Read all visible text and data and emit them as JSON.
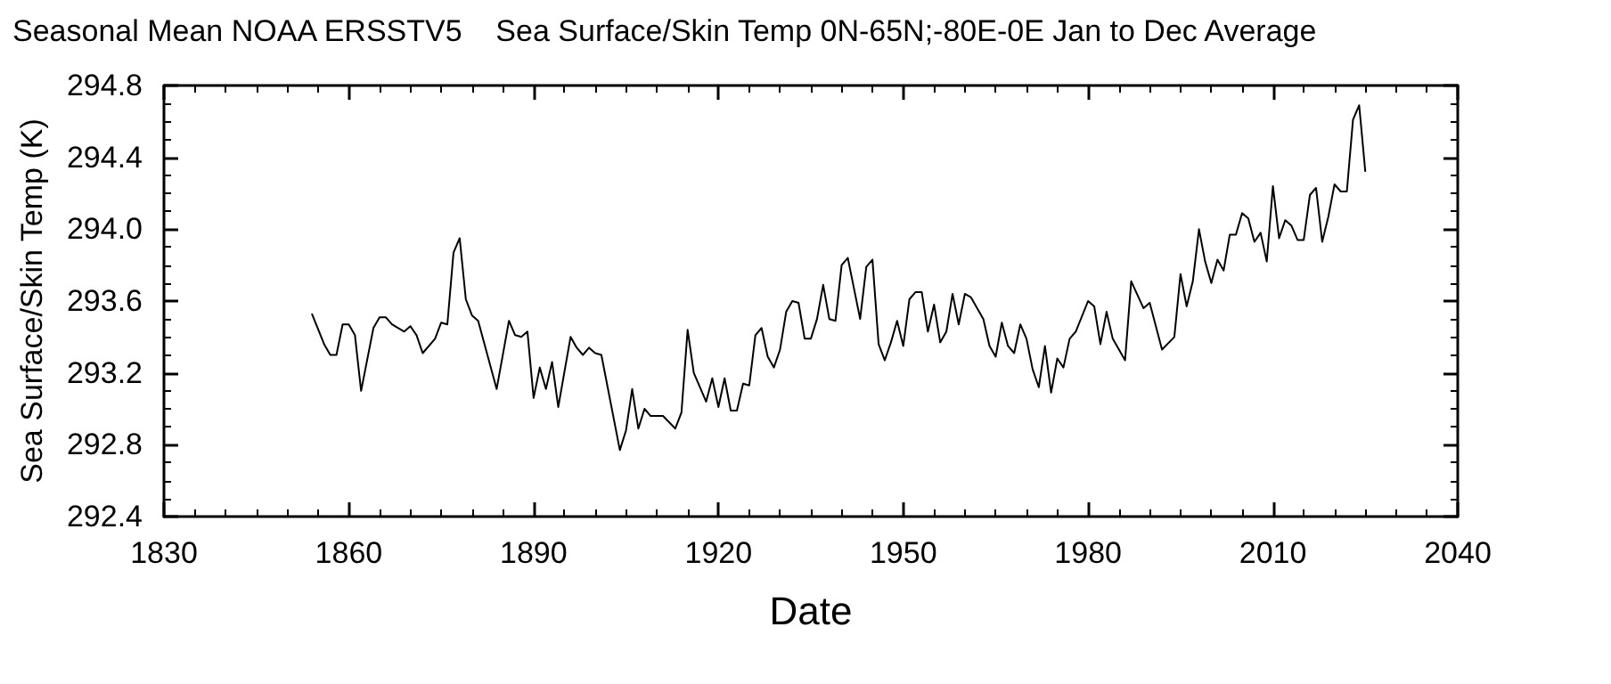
{
  "chart_data": {
    "type": "line",
    "title": "Seasonal Mean NOAA ERSSTV5    Sea Surface/Skin Temp 0N-65N;-80E-0E Jan to Dec Average",
    "xlabel": "Date",
    "ylabel": "Sea Surface/Skin Temp (K)",
    "x": [
      1854,
      1856,
      1857,
      1858,
      1859,
      1860,
      1861,
      1862,
      1864,
      1865,
      1866,
      1867,
      1869,
      1870,
      1871,
      1872,
      1874,
      1875,
      1876,
      1877,
      1878,
      1879,
      1880,
      1881,
      1884,
      1886,
      1887,
      1888,
      1889,
      1890,
      1891,
      1892,
      1893,
      1894,
      1896,
      1897,
      1898,
      1899,
      1900,
      1901,
      1904,
      1905,
      1906,
      1907,
      1908,
      1909,
      1911,
      1913,
      1914,
      1915,
      1916,
      1918,
      1919,
      1920,
      1921,
      1922,
      1923,
      1924,
      1925,
      1926,
      1927,
      1928,
      1929,
      1930,
      1931,
      1932,
      1933,
      1934,
      1935,
      1936,
      1937,
      1938,
      1939,
      1940,
      1941,
      1942,
      1943,
      1944,
      1945,
      1946,
      1947,
      1948,
      1949,
      1950,
      1951,
      1952,
      1953,
      1954,
      1955,
      1956,
      1957,
      1958,
      1959,
      1960,
      1961,
      1963,
      1964,
      1965,
      1966,
      1967,
      1968,
      1969,
      1970,
      1971,
      1972,
      1973,
      1974,
      1975,
      1976,
      1977,
      1978,
      1980,
      1981,
      1982,
      1983,
      1984,
      1986,
      1987,
      1989,
      1990,
      1992,
      1994,
      1995,
      1996,
      1997,
      1998,
      1999,
      2000,
      2001,
      2002,
      2003,
      2004,
      2005,
      2006,
      2007,
      2008,
      2009,
      2010,
      2011,
      2012,
      2013,
      2014,
      2015,
      2016,
      2017,
      2018,
      2019,
      2020,
      2021,
      2022,
      2023,
      2024,
      2025
    ],
    "values": [
      293.53,
      293.36,
      293.3,
      293.3,
      293.47,
      293.47,
      293.41,
      293.1,
      293.45,
      293.51,
      293.51,
      293.47,
      293.43,
      293.46,
      293.41,
      293.31,
      293.39,
      293.48,
      293.47,
      293.87,
      293.95,
      293.61,
      293.52,
      293.49,
      293.11,
      293.49,
      293.41,
      293.4,
      293.43,
      293.06,
      293.23,
      293.11,
      293.26,
      293.01,
      293.4,
      293.34,
      293.3,
      293.34,
      293.31,
      293.3,
      292.77,
      292.88,
      293.11,
      292.89,
      293.0,
      292.96,
      292.96,
      292.89,
      292.98,
      293.44,
      293.2,
      293.04,
      293.17,
      293.01,
      293.17,
      292.99,
      292.99,
      293.14,
      293.13,
      293.41,
      293.45,
      293.29,
      293.23,
      293.33,
      293.54,
      293.6,
      293.59,
      293.39,
      293.39,
      293.5,
      293.69,
      293.5,
      293.49,
      293.8,
      293.84,
      293.67,
      293.5,
      293.79,
      293.83,
      293.36,
      293.27,
      293.37,
      293.49,
      293.35,
      293.61,
      293.65,
      293.65,
      293.43,
      293.58,
      293.37,
      293.43,
      293.64,
      293.47,
      293.64,
      293.62,
      293.5,
      293.35,
      293.29,
      293.48,
      293.35,
      293.31,
      293.47,
      293.39,
      293.22,
      293.12,
      293.35,
      293.09,
      293.28,
      293.23,
      293.39,
      293.43,
      293.6,
      293.57,
      293.36,
      293.54,
      293.39,
      293.27,
      293.71,
      293.56,
      293.59,
      293.33,
      293.4,
      293.75,
      293.57,
      293.71,
      294.0,
      293.82,
      293.7,
      293.83,
      293.77,
      293.97,
      293.97,
      294.09,
      294.06,
      293.93,
      293.98,
      293.82,
      294.24,
      293.95,
      294.05,
      294.02,
      293.94,
      293.94,
      294.19,
      294.23,
      293.93,
      294.07,
      294.25,
      294.21,
      294.21,
      294.61,
      294.69,
      294.32
    ],
    "color": "#000000",
    "xlim": [
      1830,
      2040
    ],
    "xticks": [
      1830,
      1860,
      1890,
      1920,
      1950,
      1980,
      2010,
      2040
    ],
    "ylim": [
      292.4,
      294.8
    ],
    "yticks": [
      292.4,
      292.8,
      293.2,
      293.6,
      {
        "value": 294,
        "label": "294.0"
      },
      294.4,
      294.8
    ],
    "grid": false,
    "marker": "none",
    "line_style": "solid"
  }
}
